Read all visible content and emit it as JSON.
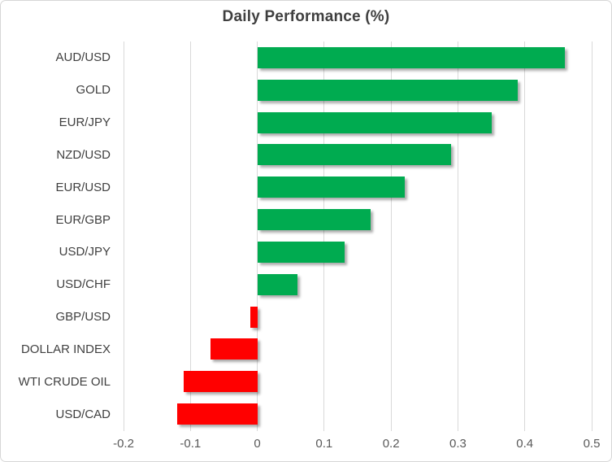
{
  "chart_data": {
    "type": "bar",
    "orientation": "horizontal",
    "title": "Daily Performance (%)",
    "categories": [
      "AUD/USD",
      "GOLD",
      "EUR/JPY",
      "NZD/USD",
      "EUR/USD",
      "EUR/GBP",
      "USD/JPY",
      "USD/CHF",
      "GBP/USD",
      "DOLLAR INDEX",
      "WTI CRUDE OIL",
      "USD/CAD"
    ],
    "values": [
      0.46,
      0.39,
      0.35,
      0.29,
      0.22,
      0.17,
      0.13,
      0.06,
      -0.01,
      -0.07,
      -0.11,
      -0.12
    ],
    "xlabel": "",
    "ylabel": "",
    "xlim": [
      -0.2,
      0.5
    ],
    "xticks": [
      -0.2,
      -0.1,
      0,
      0.1,
      0.2,
      0.3,
      0.4,
      0.5
    ],
    "xtick_labels": [
      "-0.2",
      "-0.1",
      "0",
      "0.1",
      "0.2",
      "0.3",
      "0.4",
      "0.5"
    ],
    "grid": "vertical",
    "legend": "none",
    "colors": {
      "positive": "#00ab50",
      "negative": "#ff0000",
      "gridline": "#d9d9d9",
      "title_text": "#3f3f3f",
      "category_text": "#404040",
      "tick_text": "#595959"
    }
  }
}
